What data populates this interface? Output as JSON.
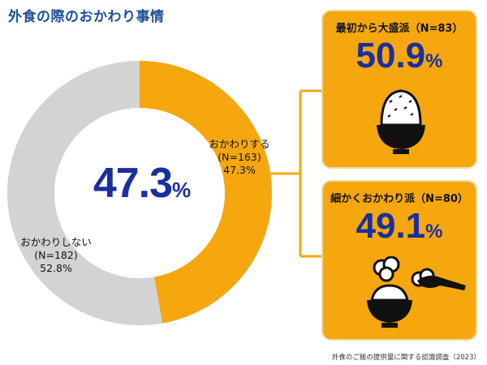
{
  "title": "外食の際のおかわり事情",
  "chart_data": {
    "type": "pie",
    "categories": [
      "おかわりする",
      "おかわりしない"
    ],
    "counts": [
      163,
      182
    ],
    "values": [
      47.3,
      52.8
    ],
    "colors": [
      "#f5a70d",
      "#d3d3d3"
    ],
    "center_value": "47.3",
    "center_unit": "%",
    "labels": [
      {
        "name": "おかわりする",
        "n": "(N=163)",
        "pct": "47.3%"
      },
      {
        "name": "おかわりしない",
        "n": "(N=182)",
        "pct": "52.8%"
      }
    ],
    "breakdown": [
      {
        "title": "最初から大盛派（N=83）",
        "value": "50.9",
        "unit": "%"
      },
      {
        "title": "細かくおかわり派（N=80）",
        "value": "49.1",
        "unit": "%"
      }
    ]
  },
  "icons": [
    "rice-bowl-icon",
    "rice-bowl-with-spoon-icon"
  ],
  "source": "外食のご飯の提供量に関する認識調査（2023）"
}
